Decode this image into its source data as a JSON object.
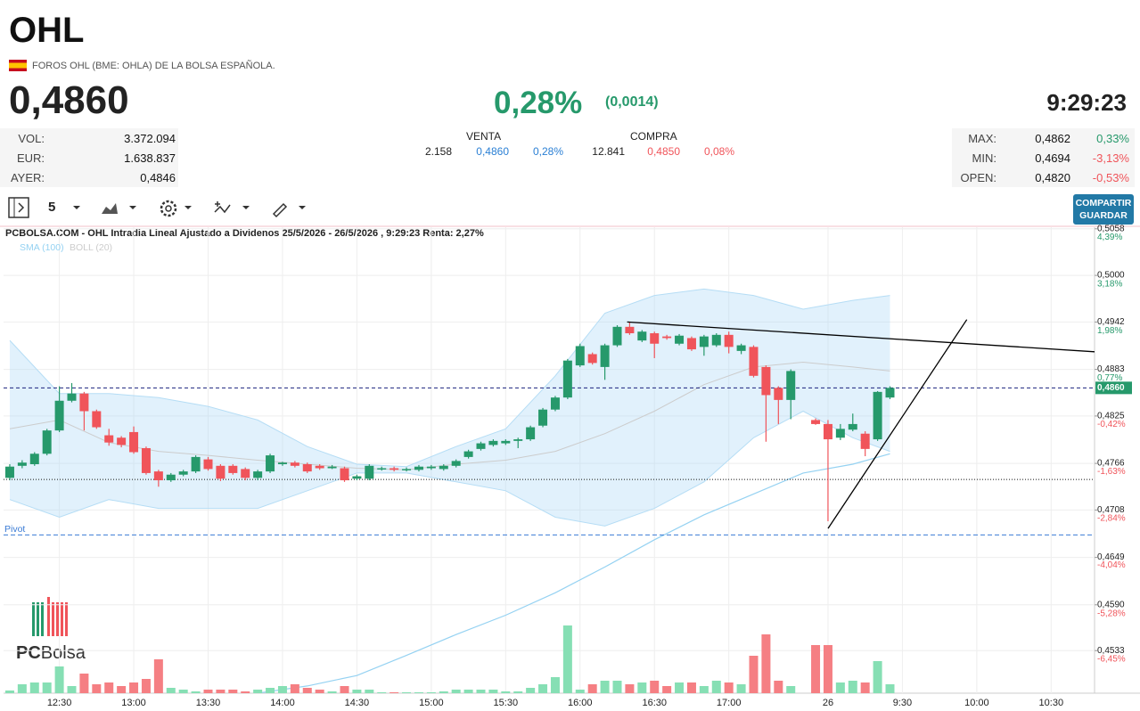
{
  "header": {
    "title": "OHL",
    "subtitle": "FOROS OHL (BME: OHLA) DE LA BOLSA ESPAÑOLA.",
    "price": "0,4860",
    "change_pct": "0,28%",
    "change_abs": "(0,0014)",
    "time": "9:29:23"
  },
  "stats_left": [
    {
      "label": "VOL:",
      "value": "3.372.094"
    },
    {
      "label": "EUR:",
      "value": "1.638.837"
    },
    {
      "label": "AYER:",
      "value": "0,4846"
    }
  ],
  "order_book": {
    "sell": {
      "title": "VENTA",
      "shares": "2.158",
      "price": "0,4860",
      "pct": "0,28%"
    },
    "buy": {
      "title": "COMPRA",
      "shares": "12.841",
      "price": "0,4850",
      "pct": "0,08%"
    }
  },
  "stats_right": [
    {
      "label": "MAX:",
      "value": "0,4862",
      "pct": "0,33%"
    },
    {
      "label": "MIN:",
      "value": "0,4694",
      "pct": "-3,13%"
    },
    {
      "label": "OPEN:",
      "value": "0,4820",
      "pct": "-0,53%"
    }
  ],
  "toolbar": {
    "interval": "5",
    "button": [
      "COMPARTIR",
      "GUARDAR"
    ]
  },
  "logo": [
    "PC",
    "Bolsa"
  ],
  "chart_data": {
    "type": "candlestick",
    "title": "PCBOLSA.COM - OHL Intradia Lineal Ajustado a Dividenos 25/5/2026 - 26/5/2026 , 9:29:23 Renta: 2,27%",
    "categories": [
      null,
      null,
      null,
      null,
      "12:30",
      null,
      null,
      null,
      null,
      null,
      "13:00",
      null,
      null,
      null,
      null,
      null,
      "13:30",
      null,
      null,
      null,
      null,
      null,
      "14:00",
      null,
      null,
      null,
      null,
      null,
      "14:30",
      null,
      null,
      null,
      null,
      null,
      "15:00",
      null,
      null,
      null,
      null,
      null,
      "15:30",
      null,
      null,
      null,
      null,
      null,
      "16:00",
      null,
      null,
      null,
      null,
      null,
      "16:30",
      null,
      null,
      null,
      null,
      null,
      "17:00",
      null,
      null,
      null,
      null,
      null,
      null,
      null,
      "26",
      null,
      null,
      null,
      null,
      null,
      "9:30",
      null,
      null,
      null,
      null,
      null,
      "10:00",
      null,
      null,
      null,
      null,
      null,
      "10:30",
      null,
      null,
      null
    ],
    "xlim": [
      -0.5,
      87.5
    ],
    "open": [
      0.4748,
      0.4763,
      0.4765,
      0.4778,
      0.4807,
      0.4844,
      0.4853,
      0.4831,
      0.4801,
      0.4798,
      0.4805,
      0.4785,
      0.4756,
      0.4745,
      0.4752,
      0.4756,
      0.4771,
      0.4763,
      0.4763,
      0.4759,
      0.4748,
      0.4756,
      0.4765,
      0.4767,
      0.4765,
      0.4763,
      0.476,
      0.476,
      0.4747,
      0.4747,
      0.4759,
      0.476,
      0.4758,
      0.4758,
      0.476,
      0.4759,
      0.4763,
      0.4774,
      0.4784,
      0.4789,
      0.4791,
      0.4794,
      0.4796,
      0.4813,
      0.4833,
      0.4848,
      0.4888,
      0.4902,
      0.4886,
      0.4913,
      0.4936,
      0.4919,
      0.4928,
      0.4924,
      0.4915,
      0.4922,
      0.4911,
      0.4913,
      0.4926,
      0.4906,
      0.4911,
      0.4886,
      0.486,
      0.4845,
      null,
      0.482,
      0.4815,
      0.4798,
      0.4808,
      0.4803,
      0.4796,
      0.4848,
      null,
      null,
      null,
      null,
      null,
      null,
      null,
      null,
      null,
      null,
      null,
      null,
      null,
      null,
      null,
      null
    ],
    "high": [
      0.4765,
      0.477,
      0.478,
      0.4809,
      0.4862,
      0.4866,
      0.4855,
      0.4833,
      0.4809,
      0.48,
      0.4812,
      0.4787,
      0.4758,
      0.4754,
      0.4758,
      0.4776,
      0.4774,
      0.4765,
      0.4765,
      0.4761,
      0.4758,
      0.4778,
      0.4768,
      0.4769,
      0.4767,
      0.4765,
      0.4764,
      0.4762,
      0.4752,
      0.4765,
      0.4762,
      0.4762,
      0.4761,
      0.4764,
      0.4764,
      0.4765,
      0.4771,
      0.4783,
      0.4793,
      0.4796,
      0.4796,
      0.4798,
      0.4813,
      0.4835,
      0.485,
      0.4896,
      0.4915,
      0.4904,
      0.4915,
      0.4938,
      0.4942,
      0.4932,
      0.493,
      0.4926,
      0.4927,
      0.4924,
      0.4926,
      0.4928,
      0.493,
      0.4915,
      0.4913,
      0.4888,
      0.4862,
      0.4883,
      null,
      0.4822,
      0.482,
      0.4815,
      0.4828,
      0.4806,
      0.4856,
      0.4862,
      null,
      null,
      null,
      null,
      null,
      null,
      null,
      null,
      null,
      null,
      null,
      null,
      null,
      null,
      null,
      null
    ],
    "low": [
      0.4745,
      0.476,
      0.4763,
      0.4776,
      0.4805,
      0.4842,
      0.4807,
      0.4809,
      0.4788,
      0.4786,
      0.4778,
      0.4752,
      0.4737,
      0.4743,
      0.475,
      0.4754,
      0.4757,
      0.4744,
      0.4752,
      0.4745,
      0.4745,
      0.4754,
      0.4763,
      0.4761,
      0.4754,
      0.4758,
      0.4759,
      0.4743,
      0.4745,
      0.4745,
      0.4757,
      0.4756,
      0.4756,
      0.4756,
      0.4758,
      0.4757,
      0.4761,
      0.4772,
      0.4782,
      0.4787,
      0.4789,
      0.4785,
      0.4794,
      0.4811,
      0.4831,
      0.4846,
      0.4886,
      0.4889,
      0.487,
      0.4911,
      0.4926,
      0.4917,
      0.4897,
      0.492,
      0.4913,
      0.4906,
      0.49,
      0.4911,
      0.4903,
      0.4902,
      0.4873,
      0.4793,
      0.4815,
      0.4821,
      null,
      0.4814,
      0.4694,
      0.4795,
      0.4806,
      0.4775,
      0.4794,
      0.4846,
      null,
      null,
      null,
      null,
      null,
      null,
      null,
      null,
      null,
      null,
      null,
      null,
      null,
      null,
      null,
      null
    ],
    "close": [
      0.4762,
      0.4767,
      0.4778,
      0.4807,
      0.4844,
      0.4853,
      0.4831,
      0.4811,
      0.4792,
      0.4789,
      0.478,
      0.4754,
      0.4745,
      0.4752,
      0.4756,
      0.4774,
      0.4759,
      0.4747,
      0.4754,
      0.4748,
      0.4756,
      0.4776,
      0.4767,
      0.4763,
      0.4756,
      0.476,
      0.4762,
      0.4745,
      0.475,
      0.4763,
      0.476,
      0.4758,
      0.4759,
      0.4762,
      0.4762,
      0.4763,
      0.4769,
      0.4781,
      0.4791,
      0.4794,
      0.4794,
      0.4796,
      0.4811,
      0.4833,
      0.4848,
      0.4894,
      0.4912,
      0.4891,
      0.4913,
      0.4936,
      0.4928,
      0.493,
      0.4915,
      0.4922,
      0.4925,
      0.4908,
      0.4924,
      0.4926,
      0.4911,
      0.4913,
      0.4875,
      0.4851,
      0.4845,
      0.4881,
      null,
      0.4815,
      0.4796,
      0.4809,
      0.4815,
      0.4784,
      0.4855,
      0.486,
      null,
      null,
      null,
      null,
      null,
      null,
      null,
      null,
      null,
      null,
      null,
      null,
      null,
      null,
      null,
      null
    ],
    "volume": [
      7500,
      25000,
      30000,
      30000,
      75000,
      20000,
      55000,
      25000,
      30000,
      20000,
      30000,
      40000,
      95000,
      15000,
      10000,
      5000,
      10000,
      10000,
      10000,
      5000,
      10000,
      15000,
      20000,
      25000,
      15000,
      10000,
      5000,
      20000,
      10000,
      10000,
      2500,
      2500,
      2500,
      2500,
      2500,
      5000,
      10000,
      10000,
      10000,
      10000,
      5000,
      5000,
      15000,
      25000,
      45000,
      190000,
      10000,
      25000,
      35000,
      35000,
      25000,
      30000,
      35000,
      20000,
      30000,
      30000,
      20000,
      35000,
      30000,
      25000,
      105000,
      165000,
      35000,
      20000,
      null,
      135000,
      135000,
      30000,
      35000,
      30000,
      90000,
      25000,
      null,
      null,
      null,
      null,
      null,
      null,
      null,
      null,
      null,
      null,
      null,
      null,
      null,
      null,
      null,
      null
    ],
    "up_color": "#26996b",
    "down_color": "#f0545a",
    "volume_up_color": "#86dfb4",
    "volume_down_color": "#f57f83",
    "ylim": [
      0.448,
      0.506
    ],
    "yticks": [
      {
        "value": 0.5058,
        "label": "0,5058"
      },
      {
        "value": 0.5,
        "label": "0,5000"
      },
      {
        "value": 0.4942,
        "label": "0,4942"
      },
      {
        "value": 0.4883,
        "label": "0,4883"
      },
      {
        "value": 0.4825,
        "label": "0,4825"
      },
      {
        "value": 0.4766,
        "label": "0,4766"
      },
      {
        "value": 0.4708,
        "label": "0,4708"
      },
      {
        "value": 0.4649,
        "label": "0,4649"
      },
      {
        "value": 0.459,
        "label": "0,4590"
      },
      {
        "value": 0.4533,
        "label": "0,4533"
      }
    ],
    "y2lim": [
      -7.553,
      4.416
    ],
    "y2ticks": [
      {
        "value": 4.39,
        "label": "4,39%"
      },
      {
        "value": 3.18,
        "label": "3,18%"
      },
      {
        "value": 1.98,
        "label": "1,98%"
      },
      {
        "value": 0.77,
        "label": "0,77%"
      },
      {
        "value": -0.42,
        "label": "-0,42%"
      },
      {
        "value": -1.63,
        "label": "-1,63%"
      },
      {
        "value": -2.84,
        "label": "-2,84%"
      },
      {
        "value": -4.04,
        "label": "-4,04%"
      },
      {
        "value": -5.28,
        "label": "-5,28%"
      },
      {
        "value": -6.45,
        "label": "-6,45%"
      }
    ],
    "grid": true,
    "indicators": [
      {
        "name": "SMA (100)",
        "color": "#95d2f2",
        "x": [
          20,
          24,
          28,
          32,
          36,
          40,
          44,
          48,
          52,
          56,
          60,
          64,
          68,
          71
        ],
        "values": [
          0.448,
          0.4489,
          0.4502,
          0.4527,
          0.4553,
          0.4577,
          0.4605,
          0.4637,
          0.4671,
          0.4702,
          0.4728,
          0.4754,
          0.4765,
          0.4778
        ]
      },
      {
        "name": "BOLL (20)",
        "color": "#cccccc",
        "x": [
          0,
          4,
          8,
          12,
          16,
          20,
          24,
          28,
          32,
          36,
          40,
          44,
          48,
          52,
          56,
          60,
          64,
          68,
          71
        ],
        "upper": [
          0.4919,
          0.4853,
          0.4853,
          0.4848,
          0.4837,
          0.482,
          0.4787,
          0.4765,
          0.4762,
          0.4787,
          0.4809,
          0.4875,
          0.4953,
          0.4975,
          0.4983,
          0.4975,
          0.4958,
          0.4969,
          0.4975
        ],
        "middle": [
          0.4809,
          0.482,
          0.4792,
          0.4781,
          0.4776,
          0.477,
          0.4765,
          0.476,
          0.4758,
          0.4765,
          0.477,
          0.4781,
          0.4803,
          0.4831,
          0.4864,
          0.4886,
          0.4892,
          0.4886,
          0.4881
        ],
        "lower": [
          0.4721,
          0.4699,
          0.4721,
          0.471,
          0.471,
          0.471,
          0.4732,
          0.4754,
          0.4754,
          0.4743,
          0.4732,
          0.4699,
          0.4688,
          0.471,
          0.4743,
          0.4798,
          0.4831,
          0.4798,
          0.4781
        ]
      }
    ],
    "last_price": {
      "value": 0.486,
      "label": "0,4860"
    },
    "pivot": {
      "value": 0.4677,
      "label": "Pivot"
    },
    "reference": 0.4746,
    "drawings": [
      {
        "x": [
          49.8,
          87.5
        ],
        "y": [
          0.4942,
          0.4905
        ]
      },
      {
        "x": [
          66,
          77.2
        ],
        "y": [
          0.4685,
          0.4945
        ]
      }
    ]
  }
}
